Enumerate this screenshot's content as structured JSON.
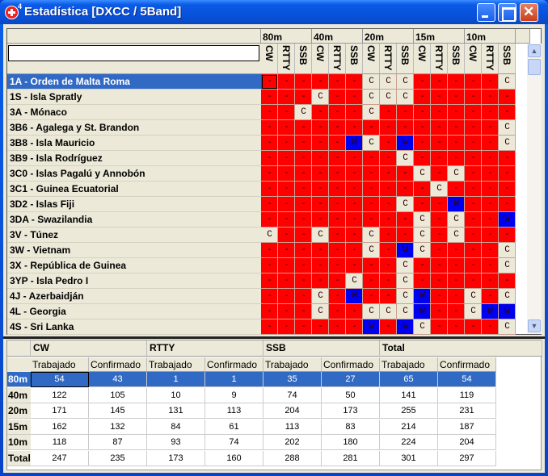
{
  "window": {
    "title": "Estadística [DXCC / 5Band]",
    "icon_badge": "4"
  },
  "grid": {
    "bands": [
      "80m",
      "40m",
      "20m",
      "15m",
      "10m"
    ],
    "modes": [
      "CW",
      "RTTY",
      "SSB"
    ],
    "filter_value": "",
    "colors": {
      "not_worked": "#ff0000",
      "confirmed": "#ece9d8",
      "worked": "#0000f0"
    },
    "rows": [
      {
        "label": "1A - Orden de Malta Roma",
        "cells": "------CCC-----C"
      },
      {
        "label": "1S - Isla Spratly",
        "cells": "---C--CCC------"
      },
      {
        "label": "3A - Mónaco",
        "cells": "--C---C--------"
      },
      {
        "label": "3B6 - Agalega y St. Brandon",
        "cells": "--------------C"
      },
      {
        "label": "3B8 - Isla Mauricio",
        "cells": "-----WC-W-----C"
      },
      {
        "label": "3B9 - Isla Rodríguez",
        "cells": "--------C------"
      },
      {
        "label": "3C0 - Islas Pagalú y Annobón",
        "cells": "---------C-C---"
      },
      {
        "label": "3C1 - Guinea Ecuatorial",
        "cells": "----------C----"
      },
      {
        "label": "3D2 - Islas Fiji",
        "cells": "--------C--W---"
      },
      {
        "label": "3DA - Swazilandia",
        "cells": "---------C-C--W"
      },
      {
        "label": "3V - Túnez",
        "cells": "C--C--C--C-C---"
      },
      {
        "label": "3W - Vietnam",
        "cells": "------C-WC----C"
      },
      {
        "label": "3X - República de Guinea",
        "cells": "--------C-----C"
      },
      {
        "label": "3YP - Isla Pedro I",
        "cells": "-----C--C------"
      },
      {
        "label": "4J - Azerbaidján",
        "cells": "---C-W--CW--C-C"
      },
      {
        "label": "4L - Georgia",
        "cells": "---C--CCCW--CWW"
      },
      {
        "label": "4S - Sri Lanka",
        "cells": "------W-WC----C"
      }
    ],
    "selected_row": 0
  },
  "summary": {
    "groups": [
      "CW",
      "RTTY",
      "SSB",
      "Total"
    ],
    "subheaders": [
      "Trabajado",
      "Confirmado",
      "Trabajado",
      "Confirmado",
      "Trabajado",
      "Confirmado",
      "Trabajado",
      "Confirmado"
    ],
    "rows": [
      {
        "label": "80m",
        "values": [
          "54",
          "43",
          "1",
          "1",
          "35",
          "27",
          "65",
          "54"
        ]
      },
      {
        "label": "40m",
        "values": [
          "122",
          "105",
          "10",
          "9",
          "74",
          "50",
          "141",
          "119"
        ]
      },
      {
        "label": "20m",
        "values": [
          "171",
          "145",
          "131",
          "113",
          "204",
          "173",
          "255",
          "231"
        ]
      },
      {
        "label": "15m",
        "values": [
          "162",
          "132",
          "84",
          "61",
          "113",
          "83",
          "214",
          "187"
        ]
      },
      {
        "label": "10m",
        "values": [
          "118",
          "87",
          "93",
          "74",
          "202",
          "180",
          "224",
          "204"
        ]
      },
      {
        "label": "Total",
        "values": [
          "247",
          "235",
          "173",
          "160",
          "288",
          "281",
          "301",
          "297"
        ]
      }
    ],
    "selected_row": 0
  }
}
